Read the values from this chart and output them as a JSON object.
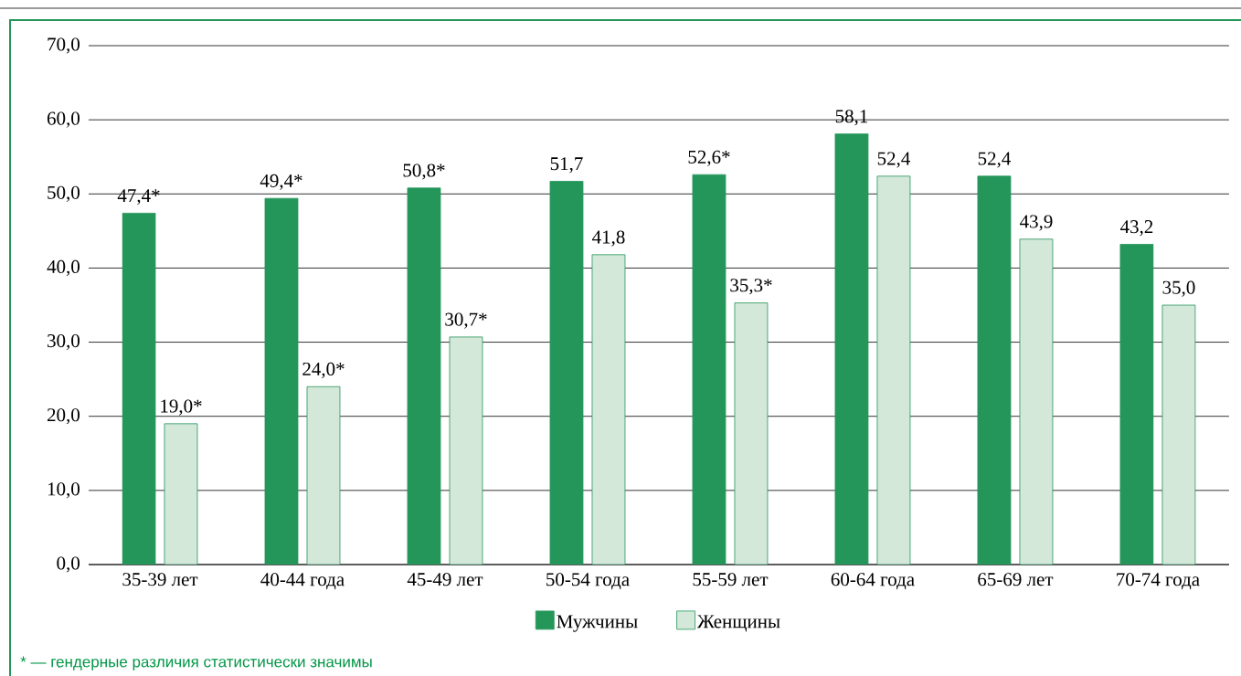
{
  "chart_data": {
    "type": "bar",
    "categories": [
      "35-39 лет",
      "40-44 года",
      "45-49 лет",
      "50-54 года",
      "55-59 лет",
      "60-64 года",
      "65-69 лет",
      "70-74 года"
    ],
    "series": [
      {
        "name": "Мужчины",
        "color": "#24965a",
        "values": [
          47.4,
          49.4,
          50.8,
          51.7,
          52.6,
          58.1,
          52.4,
          43.2
        ],
        "value_labels": [
          "47,4*",
          "49,4*",
          "50,8*",
          "51,7",
          "52,6*",
          "58,1",
          "52,4",
          "43,2"
        ]
      },
      {
        "name": "Женщины",
        "color": "#d3e8d9",
        "values": [
          19.0,
          24.0,
          30.7,
          41.8,
          35.3,
          52.4,
          43.9,
          35.0
        ],
        "value_labels": [
          "19,0*",
          "24,0*",
          "30,7*",
          "41,8",
          "35,3*",
          "52,4",
          "43,9",
          "35,0"
        ]
      }
    ],
    "ylim": [
      0,
      70
    ],
    "yticks": [
      {
        "value": 0,
        "label": "0,0"
      },
      {
        "value": 10,
        "label": "10,0"
      },
      {
        "value": 20,
        "label": "20,0"
      },
      {
        "value": 30,
        "label": "30,0"
      },
      {
        "value": 40,
        "label": "40,0"
      },
      {
        "value": 50,
        "label": "50,0"
      },
      {
        "value": 60,
        "label": "60,0"
      },
      {
        "value": 70,
        "label": "70,0"
      }
    ],
    "grid": "y",
    "legend": "bottom",
    "annotations": [
      "* — гендерные различия статистически значимы"
    ]
  }
}
